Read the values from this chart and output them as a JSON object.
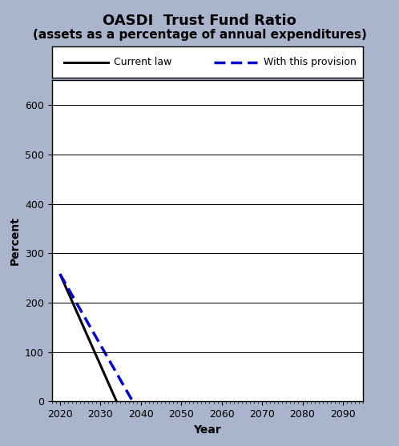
{
  "title": "OASDI  Trust Fund Ratio",
  "subtitle": "(assets as a percentage of annual expenditures)",
  "xlabel": "Year",
  "ylabel": "Percent",
  "background_color": "#aab4cc",
  "plot_bg_color": "#ffffff",
  "xlim": [
    2018,
    2095
  ],
  "ylim": [
    0,
    650
  ],
  "yticks": [
    0,
    100,
    200,
    300,
    400,
    500,
    600
  ],
  "xticks": [
    2020,
    2030,
    2040,
    2050,
    2060,
    2070,
    2080,
    2090
  ],
  "current_law": {
    "x": [
      2020,
      2034
    ],
    "y": [
      258,
      0
    ],
    "color": "#000000",
    "linewidth": 2.2,
    "linestyle": "solid",
    "label": "Current law"
  },
  "provision": {
    "x": [
      2020,
      2038
    ],
    "y": [
      258,
      0
    ],
    "color": "#0000cc",
    "linewidth": 2.5,
    "label": "With this provision"
  },
  "title_fontsize": 13,
  "subtitle_fontsize": 11,
  "axis_label_fontsize": 10,
  "tick_fontsize": 9,
  "legend_fontsize": 9
}
